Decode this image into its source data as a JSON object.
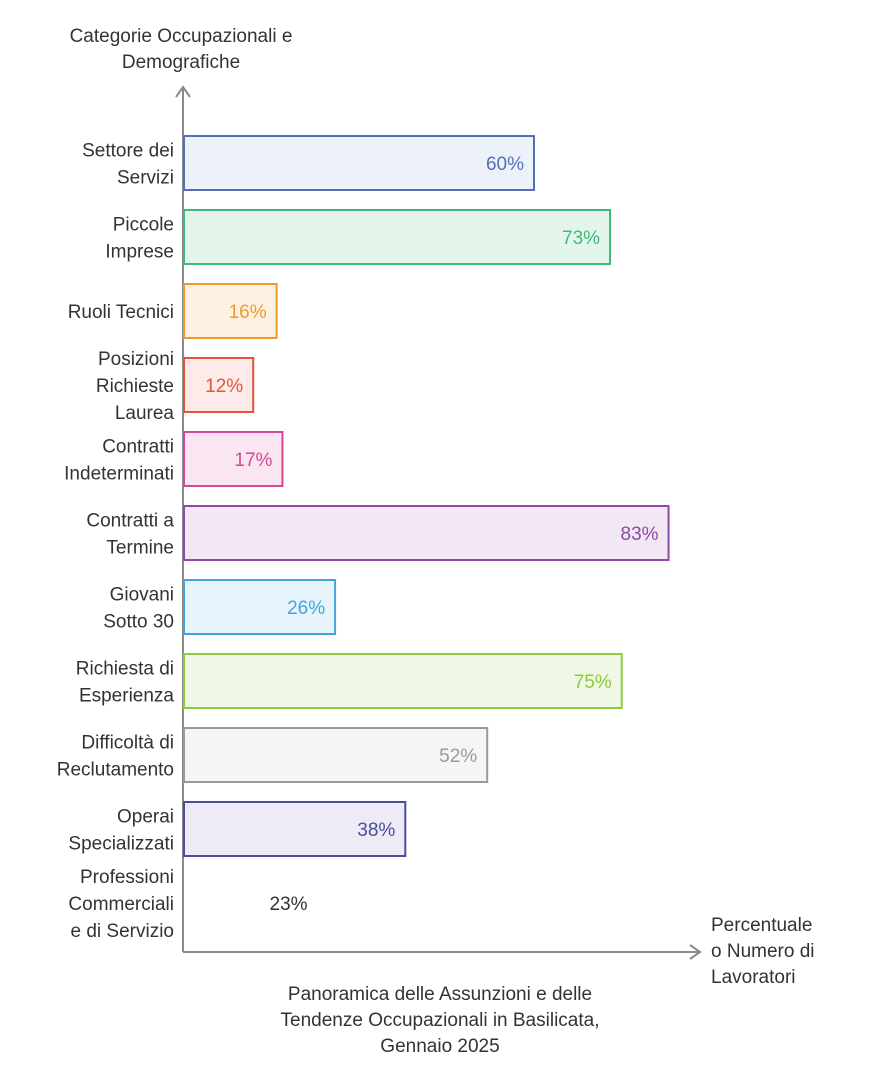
{
  "chart_data": {
    "type": "bar",
    "orientation": "horizontal",
    "title": [
      "Panoramica delle Assunzioni e delle",
      "Tendenze Occupazionali in Basilicata,",
      "Gennaio 2025"
    ],
    "ylabel": [
      "Categorie Occupazionali e",
      "Demografiche"
    ],
    "xlabel": [
      "Percentuale",
      "o Numero di",
      "Lavoratori"
    ],
    "xlim": [
      0,
      100
    ],
    "categories": [
      {
        "label": [
          "Settore dei",
          "Servizi"
        ],
        "value": 60,
        "value_label": "60%",
        "color": "#5470b5",
        "fill": "#edf1fa"
      },
      {
        "label": [
          "Piccole",
          "Imprese"
        ],
        "value": 73,
        "value_label": "73%",
        "color": "#3fb97a",
        "fill": "#e4f6ec"
      },
      {
        "label": [
          "Ruoli Tecnici"
        ],
        "value": 16,
        "value_label": "16%",
        "color": "#ef9a2a",
        "fill": "#fdf1e3"
      },
      {
        "label": [
          "Posizioni",
          "Richieste",
          "Laurea"
        ],
        "value": 12,
        "value_label": "12%",
        "color": "#e5533d",
        "fill": "#fcebe8"
      },
      {
        "label": [
          "Contratti",
          "Indeterminati"
        ],
        "value": 17,
        "value_label": "17%",
        "color": "#d5479b",
        "fill": "#f9e6f1"
      },
      {
        "label": [
          "Contratti a",
          "Termine"
        ],
        "value": 83,
        "value_label": "83%",
        "color": "#8e4aa8",
        "fill": "#f2e8f5"
      },
      {
        "label": [
          "Giovani",
          "Sotto 30"
        ],
        "value": 26,
        "value_label": "26%",
        "color": "#3fa5dc",
        "fill": "#e7f4fb"
      },
      {
        "label": [
          "Richiesta di",
          "Esperienza"
        ],
        "value": 75,
        "value_label": "75%",
        "color": "#8ccc3f",
        "fill": "#f0f8e5"
      },
      {
        "label": [
          "Difficoltà di",
          "Reclutamento"
        ],
        "value": 52,
        "value_label": "52%",
        "color": "#9a9a9a",
        "fill": "#f5f5f5"
      },
      {
        "label": [
          "Operai",
          "Specializzati"
        ],
        "value": 38,
        "value_label": "38%",
        "color": "#4a4e9e",
        "fill": "#ecebf6"
      },
      {
        "label": [
          "Professioni",
          "Commerciali",
          "e di Servizio"
        ],
        "value": 23,
        "value_label": "23%",
        "color": "#333333",
        "fill": "none"
      }
    ],
    "axis_color": "#8a8a8a",
    "grid": false
  }
}
